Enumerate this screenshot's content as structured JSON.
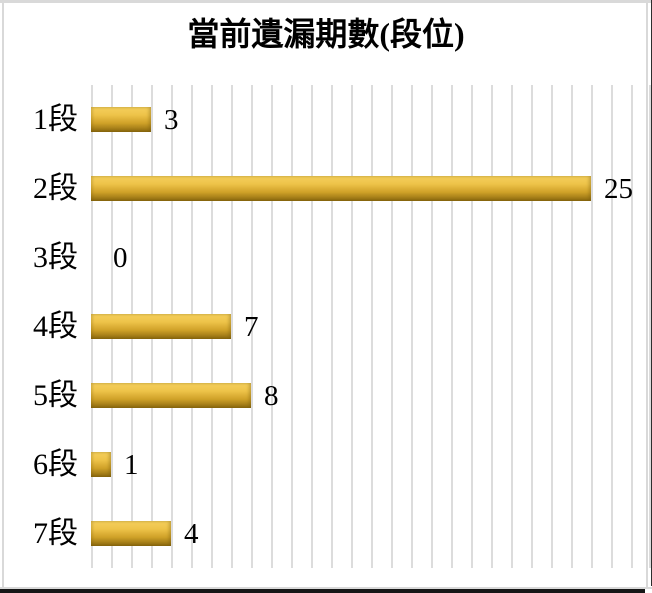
{
  "chart_data": {
    "type": "bar",
    "orientation": "horizontal",
    "title": "當前遺漏期數(段位)",
    "categories": [
      "1段",
      "2段",
      "3段",
      "4段",
      "5段",
      "6段",
      "7段"
    ],
    "values": [
      3,
      25,
      0,
      7,
      8,
      1,
      4
    ],
    "xlabel": "",
    "ylabel": "",
    "xlim": [
      0,
      28
    ],
    "grid": {
      "vertical": true,
      "interval": 1
    },
    "legend": false,
    "data_labels": true
  },
  "style": {
    "background": "#ffffff",
    "text_color": "#000000",
    "gridline_color": "#dcdcdc",
    "border_color": "#d9d9d9",
    "bottom_strip_color": "#161616",
    "right_edge_color": "#2e2e2e",
    "bar_gradient_top": "#f5d05e",
    "bar_gradient_mid": "#eec349",
    "bar_gradient_lower": "#cfa128",
    "bar_gradient_bottom": "#8a680e"
  }
}
